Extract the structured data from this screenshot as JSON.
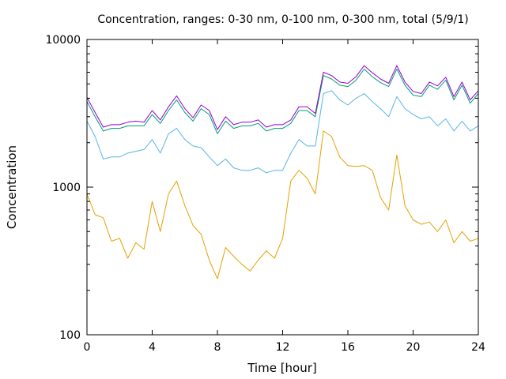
{
  "chart_data": {
    "type": "line",
    "title": "Concentration, ranges: 0-30 nm, 0-100 nm, 0-300 nm, total (5/9/1)",
    "xlabel": "Time [hour]",
    "ylabel": "Concentration",
    "xlim": [
      0,
      24
    ],
    "ylim": [
      100,
      10000
    ],
    "yscale": "log",
    "grid": false,
    "legend": "none",
    "x_ticks": [
      0,
      4,
      8,
      12,
      16,
      20,
      24
    ],
    "x_tick_labels": [
      "0",
      "4",
      "8",
      "12",
      "16",
      "20",
      "24"
    ],
    "y_ticks": [
      100,
      1000,
      10000
    ],
    "y_tick_labels": [
      "100",
      "1000",
      "10000"
    ],
    "x": [
      0,
      0.5,
      1,
      1.5,
      2,
      2.5,
      3,
      3.5,
      4,
      4.5,
      5,
      5.5,
      6,
      6.5,
      7,
      7.5,
      8,
      8.5,
      9,
      9.5,
      10,
      10.5,
      11,
      11.5,
      12,
      12.5,
      13,
      13.5,
      14,
      14.5,
      15,
      15.5,
      16,
      16.5,
      17,
      17.5,
      18,
      18.5,
      19,
      19.5,
      20,
      20.5,
      21,
      21.5,
      22,
      22.5,
      23,
      23.5,
      24
    ],
    "series": [
      {
        "color": "#e6a000",
        "values": [
          900,
          650,
          620,
          430,
          450,
          330,
          420,
          380,
          800,
          500,
          900,
          1100,
          750,
          550,
          480,
          320,
          240,
          390,
          340,
          300,
          270,
          320,
          370,
          330,
          450,
          1100,
          1300,
          1150,
          900,
          2400,
          2200,
          1600,
          1400,
          1380,
          1400,
          1300,
          850,
          700,
          1650,
          750,
          600,
          560,
          580,
          500,
          600,
          420,
          500,
          430,
          450
        ]
      },
      {
        "color": "#56b4e9",
        "values": [
          2800,
          2200,
          1550,
          1600,
          1600,
          1700,
          1750,
          1800,
          2100,
          1700,
          2300,
          2500,
          2100,
          1900,
          1850,
          1600,
          1400,
          1550,
          1350,
          1300,
          1300,
          1350,
          1250,
          1300,
          1300,
          1700,
          2100,
          1900,
          1900,
          4300,
          4500,
          3900,
          3600,
          4000,
          4300,
          3800,
          3400,
          3000,
          4100,
          3400,
          3100,
          2900,
          3000,
          2600,
          2900,
          2400,
          2800,
          2400,
          2600
        ]
      },
      {
        "color": "#009e73",
        "values": [
          3800,
          3000,
          2400,
          2500,
          2500,
          2600,
          2600,
          2600,
          3100,
          2700,
          3300,
          3900,
          3200,
          2800,
          3400,
          3100,
          2300,
          2800,
          2500,
          2600,
          2600,
          2700,
          2400,
          2500,
          2500,
          2700,
          3300,
          3300,
          3000,
          5700,
          5400,
          4900,
          4800,
          5300,
          6300,
          5600,
          5100,
          4800,
          6300,
          4900,
          4200,
          4100,
          4900,
          4600,
          5300,
          3900,
          4900,
          3700,
          4300
        ]
      },
      {
        "color": "#9400d3",
        "values": [
          4050,
          3200,
          2550,
          2650,
          2650,
          2750,
          2800,
          2750,
          3300,
          2850,
          3500,
          4150,
          3400,
          2950,
          3600,
          3300,
          2450,
          3000,
          2650,
          2750,
          2750,
          2850,
          2550,
          2650,
          2650,
          2850,
          3500,
          3500,
          3150,
          6000,
          5700,
          5150,
          5050,
          5600,
          6650,
          5950,
          5400,
          5050,
          6650,
          5150,
          4450,
          4300,
          5150,
          4850,
          5550,
          4100,
          5150,
          3900,
          4500
        ]
      }
    ]
  }
}
